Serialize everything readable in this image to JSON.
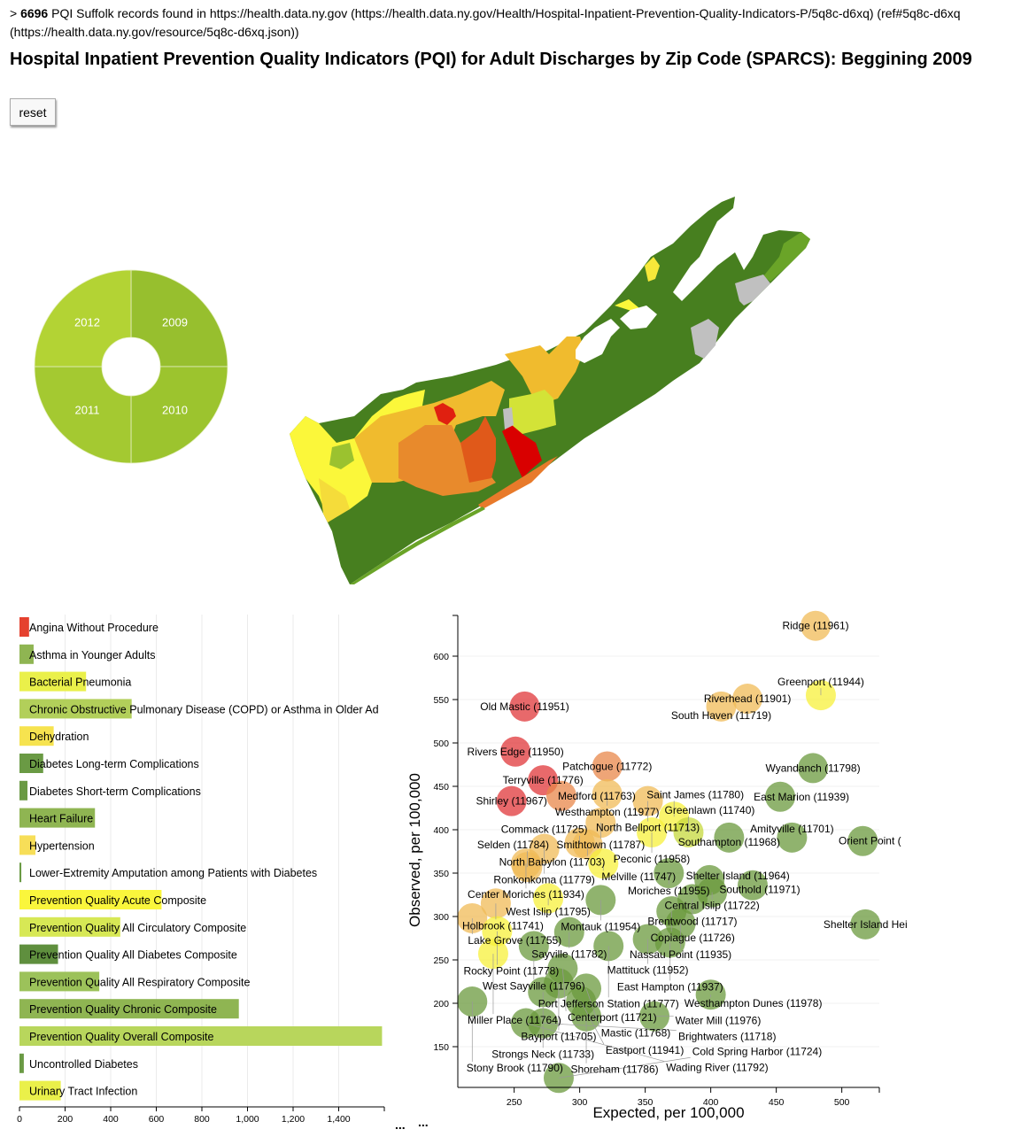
{
  "header": {
    "prefix": "> ",
    "count": "6696",
    "text": " PQI Suffolk records found in https://health.data.ny.gov (https://health.data.ny.gov/Health/Hospital-Inpatient-Prevention-Quality-Indicators-P/5q8c-d6xq) (ref#5q8c-d6xq (https://health.data.ny.gov/resource/5q8c-d6xq.json))",
    "title": "Hospital Inpatient Prevention Quality Indicators (PQI) for Adult Discharges by Zip Code (SPARCS): Beggining 2009",
    "reset_label": "reset"
  },
  "chart_data": [
    {
      "type": "pie",
      "slices": [
        {
          "label": "2009",
          "value": 1,
          "color": "#97bf2e"
        },
        {
          "label": "2010",
          "value": 1,
          "color": "#9cc42e"
        },
        {
          "label": "2011",
          "value": 1,
          "color": "#a4c931"
        },
        {
          "label": "2012",
          "value": 1,
          "color": "#b3d334"
        }
      ],
      "inner_hole": true
    },
    {
      "type": "bar",
      "orientation": "horizontal",
      "categories": [
        "Angina Without Procedure",
        "Asthma in Younger Adults",
        "Bacterial Pneumonia",
        "Chronic Obstructive Pulmonary Disease (COPD) or Asthma in Older Ad",
        "Dehydration",
        "Diabetes Long-term Complications",
        "Diabetes Short-term Complications",
        "Heart Failure",
        "Hypertension",
        "Lower-Extremity Amputation among Patients with Diabetes",
        "Prevention Quality Acute Composite",
        "Prevention Quality All Circulatory Composite",
        "Prevention Quality All Diabetes Composite",
        "Prevention Quality All Respiratory Composite",
        "Prevention Quality Chronic Composite",
        "Prevention Quality Overall Composite",
        "Uncontrolled Diabetes",
        "Urinary Tract Infection"
      ],
      "values": [
        42,
        62,
        292,
        492,
        150,
        104,
        35,
        331,
        70,
        8,
        623,
        442,
        169,
        350,
        962,
        1590,
        19,
        181
      ],
      "colors": [
        "#e5412f",
        "#8fb552",
        "#eaf04a",
        "#b2cf5a",
        "#f6e34f",
        "#6a9a44",
        "#6a9a44",
        "#8fb552",
        "#f7de58",
        "#6a9a44",
        "#faf63c",
        "#d7e855",
        "#5f8f3e",
        "#9cc25a",
        "#8fb552",
        "#b8d65c",
        "#6a9a44",
        "#eaf04a"
      ],
      "xticks": [
        "0",
        "200",
        "400",
        "600",
        "800",
        "1,000",
        "1,200",
        "1,400"
      ],
      "xlim": [
        0,
        1600
      ],
      "grid": true,
      "more": "..."
    },
    {
      "type": "scatter",
      "xlabel": "Expected, per 100,000",
      "ylabel": "Observed, per 100,000",
      "xlim": [
        207,
        528
      ],
      "ylim": [
        103,
        645
      ],
      "xticks": [
        250,
        300,
        350,
        400,
        450,
        500
      ],
      "yticks": [
        150,
        200,
        250,
        300,
        350,
        400,
        450,
        500,
        550,
        600
      ],
      "grid": true,
      "points": [
        {
          "label": "Ridge (11961)",
          "x": 480,
          "y": 635
        },
        {
          "label": "Old Mastic (11951)",
          "x": 258,
          "y": 542
        },
        {
          "label": "Rivers Edge (11950)",
          "x": 251,
          "y": 490
        },
        {
          "label": "Patchogue (11772)",
          "x": 321,
          "y": 473
        },
        {
          "label": "Terryville (11776)",
          "x": 272,
          "y": 457
        },
        {
          "label": "Shirley (11967)",
          "x": 248,
          "y": 433
        },
        {
          "label": "Medford (11763)",
          "x": 286,
          "y": 439
        },
        {
          "label": "Westhampton (11977)",
          "x": 321,
          "y": 441
        },
        {
          "label": "North Bellport (11713)",
          "x": 352,
          "y": 433
        },
        {
          "label": "Saint James (11780)",
          "x": 372,
          "y": 415
        },
        {
          "label": "Smithtown (11787)",
          "x": 316,
          "y": 408
        },
        {
          "label": "Riverhead (11901)",
          "x": 428,
          "y": 551
        },
        {
          "label": "South Haven (11719)",
          "x": 408,
          "y": 542
        },
        {
          "label": "Greenport (11944)",
          "x": 484,
          "y": 555
        },
        {
          "label": "Wyandanch (11798)",
          "x": 478,
          "y": 471
        },
        {
          "label": "East Marion (11939)",
          "x": 453,
          "y": 438
        },
        {
          "label": "Southampton (11968)",
          "x": 414,
          "y": 391
        },
        {
          "label": "Amityville (11701)",
          "x": 462,
          "y": 391
        },
        {
          "label": "Orient Point (",
          "x": 516,
          "y": 387
        },
        {
          "label": "Greenlawn (11740)",
          "x": 383,
          "y": 397
        },
        {
          "label": "Peconic (11958)",
          "x": 355,
          "y": 397
        },
        {
          "label": "North Babylon (11703)",
          "x": 306,
          "y": 383
        },
        {
          "label": "Commack (11725)",
          "x": 300,
          "y": 385
        },
        {
          "label": "Ronkonkoma (11779)",
          "x": 273,
          "y": 378
        },
        {
          "label": "Melville (11747)",
          "x": 318,
          "y": 361
        },
        {
          "label": "Center Moriches (11934)",
          "x": 259,
          "y": 361
        },
        {
          "label": "Selden (11784)",
          "x": 260,
          "y": 357
        },
        {
          "label": "Moriches (11955)",
          "x": 368,
          "y": 350
        },
        {
          "label": "Shelter Island (11964)",
          "x": 399,
          "y": 342
        },
        {
          "label": "Southold (11971)",
          "x": 432,
          "y": 336
        },
        {
          "label": "Central Islip (11722)",
          "x": 401,
          "y": 328
        },
        {
          "label": "Brentwood (11717)",
          "x": 386,
          "y": 320
        },
        {
          "label": "West Islip (11795)",
          "x": 276,
          "y": 321
        },
        {
          "label": "Montauk (11954)",
          "x": 316,
          "y": 319
        },
        {
          "label": "Holbrook (11741)",
          "x": 236,
          "y": 315
        },
        {
          "label": "Copiague (11726)",
          "x": 370,
          "y": 306
        },
        {
          "label": "Lake Grove (11755)",
          "x": 218,
          "y": 298
        },
        {
          "label": "Nassau Point (11935)",
          "x": 377,
          "y": 292
        },
        {
          "label": "Shelter Island Hei",
          "x": 518,
          "y": 291
        },
        {
          "label": "Sayville (11782)",
          "x": 292,
          "y": 282
        },
        {
          "label": "Rocky Point (11778)",
          "x": 237,
          "y": 283
        },
        {
          "label": "Mattituck (11952)",
          "x": 352,
          "y": 274
        },
        {
          "label": "East Hampton (11937)",
          "x": 369,
          "y": 270
        },
        {
          "label": "Port Jefferson Station (11777)",
          "x": 322,
          "y": 266
        },
        {
          "label": "West Sayville (11796)",
          "x": 265,
          "y": 266
        },
        {
          "label": "Miller Place (11764)",
          "x": 234,
          "y": 257
        },
        {
          "label": "Centerport (11721)",
          "x": 287,
          "y": 240
        },
        {
          "label": "Bayport (11705)",
          "x": 284,
          "y": 223
        },
        {
          "label": "Mastic (11768)",
          "x": 305,
          "y": 217
        },
        {
          "label": "Strongs Neck (11733)",
          "x": 272,
          "y": 213
        },
        {
          "label": "Westhampton Dunes (11978)",
          "x": 400,
          "y": 210
        },
        {
          "label": "Stony Brook (11790)",
          "x": 218,
          "y": 202
        },
        {
          "label": "Eastport (11941)",
          "x": 301,
          "y": 202
        },
        {
          "label": "Shoreham (11786)",
          "x": 305,
          "y": 185
        },
        {
          "label": "Water Mill (11976)",
          "x": 357,
          "y": 185
        },
        {
          "label": "Wading River (11792)",
          "x": 259,
          "y": 177
        },
        {
          "label": "Brightwaters (11718)",
          "x": 272,
          "y": 177
        },
        {
          "label": "Cold Spring Harbor (11724)",
          "x": 284,
          "y": 114
        }
      ],
      "more": "..."
    }
  ],
  "map": {
    "colors": {
      "dark_green": "#477f1f",
      "mid_green": "#5c9424",
      "light_green": "#9bc22f",
      "yellow": "#fbf73a",
      "gold": "#f0bb2e",
      "orange": "#e88a2c",
      "dark_orange": "#e0591a",
      "red": "#d90000",
      "grey": "#c0c0c0"
    }
  }
}
